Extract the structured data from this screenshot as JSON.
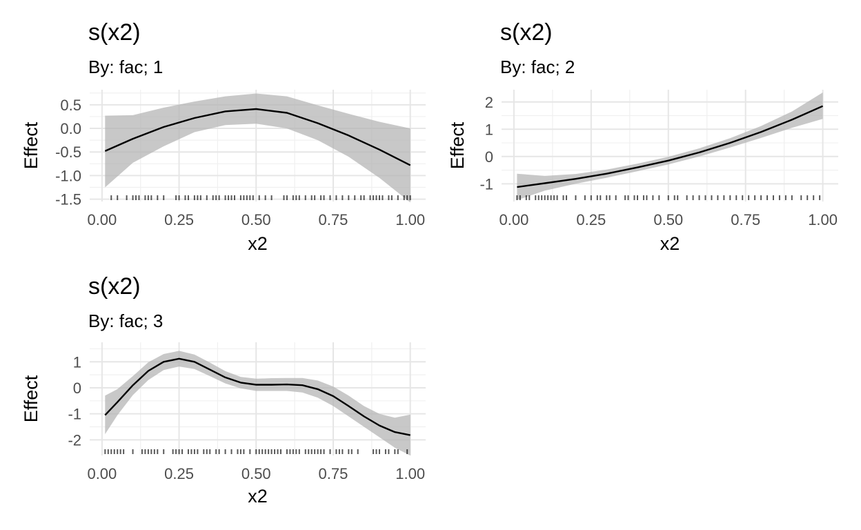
{
  "chart_data": [
    {
      "type": "line",
      "title": "s(x2)",
      "subtitle": "By: fac; 1",
      "xlabel": "x2",
      "ylabel": "Effect",
      "xlim": [
        -0.04,
        1.05
      ],
      "ylim": [
        -1.55,
        0.82
      ],
      "x_ticks": [
        0.0,
        0.25,
        0.5,
        0.75,
        1.0
      ],
      "x_tick_labels": [
        "0.00",
        "0.25",
        "0.50",
        "0.75",
        "1.00"
      ],
      "y_ticks": [
        -1.5,
        -1.0,
        -0.5,
        0.0,
        0.5
      ],
      "y_tick_labels": [
        "-1.5",
        "-1.0",
        "-0.5",
        "0.0",
        "0.5"
      ],
      "grid": true,
      "series": [
        {
          "x": [
            0.01,
            0.1,
            0.2,
            0.3,
            0.4,
            0.5,
            0.6,
            0.7,
            0.8,
            0.9,
            1.0
          ],
          "y": [
            -0.48,
            -0.22,
            0.03,
            0.22,
            0.36,
            0.41,
            0.33,
            0.11,
            -0.15,
            -0.45,
            -0.78
          ],
          "lower": [
            -1.25,
            -0.73,
            -0.38,
            -0.08,
            0.07,
            0.1,
            0.0,
            -0.25,
            -0.6,
            -1.05,
            -1.57
          ],
          "upper": [
            0.27,
            0.28,
            0.44,
            0.57,
            0.68,
            0.74,
            0.68,
            0.49,
            0.31,
            0.14,
            0.0
          ]
        }
      ],
      "rug": [
        0.03,
        0.05,
        0.08,
        0.1,
        0.11,
        0.12,
        0.14,
        0.15,
        0.16,
        0.18,
        0.2,
        0.24,
        0.25,
        0.27,
        0.28,
        0.3,
        0.31,
        0.32,
        0.34,
        0.36,
        0.37,
        0.38,
        0.4,
        0.41,
        0.42,
        0.43,
        0.45,
        0.46,
        0.47,
        0.48,
        0.49,
        0.51,
        0.53,
        0.55,
        0.59,
        0.6,
        0.62,
        0.63,
        0.64,
        0.66,
        0.68,
        0.69,
        0.71,
        0.72,
        0.74,
        0.76,
        0.78,
        0.8,
        0.82,
        0.84,
        0.85,
        0.87,
        0.88,
        0.89,
        0.9,
        0.91,
        0.93,
        0.94,
        0.96,
        0.98,
        0.99,
        1.0
      ]
    },
    {
      "type": "line",
      "title": "s(x2)",
      "subtitle": "By: fac; 2",
      "xlabel": "x2",
      "ylabel": "Effect",
      "xlim": [
        -0.04,
        1.05
      ],
      "ylim": [
        -1.65,
        2.45
      ],
      "x_ticks": [
        0.0,
        0.25,
        0.5,
        0.75,
        1.0
      ],
      "x_tick_labels": [
        "0.00",
        "0.25",
        "0.50",
        "0.75",
        "1.00"
      ],
      "y_ticks": [
        -1,
        0,
        1,
        2
      ],
      "y_tick_labels": [
        "-1",
        "0",
        "1",
        "2"
      ],
      "grid": true,
      "series": [
        {
          "x": [
            0.01,
            0.1,
            0.2,
            0.3,
            0.4,
            0.5,
            0.6,
            0.7,
            0.8,
            0.9,
            1.0
          ],
          "y": [
            -1.12,
            -0.98,
            -0.82,
            -0.63,
            -0.4,
            -0.15,
            0.15,
            0.5,
            0.9,
            1.35,
            1.85
          ],
          "lower": [
            -1.6,
            -1.25,
            -1.0,
            -0.78,
            -0.54,
            -0.29,
            0.0,
            0.33,
            0.68,
            1.05,
            1.38
          ],
          "upper": [
            -0.63,
            -0.71,
            -0.64,
            -0.48,
            -0.26,
            -0.01,
            0.3,
            0.67,
            1.12,
            1.65,
            2.35
          ]
        }
      ],
      "rug": [
        0.01,
        0.02,
        0.04,
        0.05,
        0.07,
        0.08,
        0.09,
        0.1,
        0.11,
        0.12,
        0.13,
        0.14,
        0.16,
        0.17,
        0.2,
        0.23,
        0.25,
        0.27,
        0.28,
        0.3,
        0.31,
        0.33,
        0.36,
        0.37,
        0.39,
        0.4,
        0.42,
        0.43,
        0.45,
        0.47,
        0.5,
        0.52,
        0.53,
        0.56,
        0.58,
        0.6,
        0.62,
        0.64,
        0.66,
        0.68,
        0.7,
        0.72,
        0.74,
        0.76,
        0.78,
        0.8,
        0.82,
        0.84,
        0.86,
        0.88,
        0.9,
        0.93,
        0.95,
        0.97,
        0.99
      ]
    },
    {
      "type": "line",
      "title": "s(x2)",
      "subtitle": "By: fac; 3",
      "xlabel": "x2",
      "ylabel": "Effect",
      "xlim": [
        -0.04,
        1.05
      ],
      "ylim": [
        -2.6,
        1.75
      ],
      "x_ticks": [
        0.0,
        0.25,
        0.5,
        0.75,
        1.0
      ],
      "x_tick_labels": [
        "0.00",
        "0.25",
        "0.50",
        "0.75",
        "1.00"
      ],
      "y_ticks": [
        -2,
        -1,
        0,
        1
      ],
      "y_tick_labels": [
        "-2",
        "-1",
        "0",
        "1"
      ],
      "grid": true,
      "series": [
        {
          "x": [
            0.01,
            0.05,
            0.1,
            0.15,
            0.2,
            0.25,
            0.3,
            0.35,
            0.4,
            0.45,
            0.5,
            0.55,
            0.6,
            0.65,
            0.7,
            0.75,
            0.8,
            0.85,
            0.9,
            0.95,
            1.0
          ],
          "y": [
            -1.05,
            -0.55,
            0.1,
            0.65,
            1.0,
            1.12,
            1.0,
            0.7,
            0.4,
            0.2,
            0.12,
            0.12,
            0.13,
            0.1,
            -0.05,
            -0.32,
            -0.7,
            -1.1,
            -1.45,
            -1.7,
            -1.82
          ],
          "lower": [
            -1.78,
            -1.05,
            -0.28,
            0.3,
            0.68,
            0.82,
            0.72,
            0.45,
            0.17,
            -0.02,
            -0.12,
            -0.12,
            -0.12,
            -0.18,
            -0.38,
            -0.7,
            -1.1,
            -1.5,
            -1.9,
            -2.3,
            -2.6
          ],
          "upper": [
            -0.3,
            -0.05,
            0.45,
            0.98,
            1.3,
            1.42,
            1.28,
            0.97,
            0.64,
            0.42,
            0.35,
            0.37,
            0.38,
            0.38,
            0.28,
            0.05,
            -0.3,
            -0.7,
            -1.0,
            -1.15,
            -1.03
          ]
        }
      ],
      "rug": [
        0.01,
        0.02,
        0.03,
        0.04,
        0.05,
        0.06,
        0.07,
        0.1,
        0.13,
        0.14,
        0.15,
        0.16,
        0.17,
        0.18,
        0.2,
        0.23,
        0.24,
        0.25,
        0.26,
        0.28,
        0.29,
        0.3,
        0.31,
        0.33,
        0.34,
        0.35,
        0.37,
        0.38,
        0.4,
        0.42,
        0.44,
        0.45,
        0.46,
        0.48,
        0.5,
        0.51,
        0.52,
        0.53,
        0.54,
        0.55,
        0.56,
        0.57,
        0.58,
        0.6,
        0.61,
        0.62,
        0.63,
        0.64,
        0.66,
        0.67,
        0.68,
        0.69,
        0.7,
        0.71,
        0.72,
        0.74,
        0.76,
        0.77,
        0.78,
        0.8,
        0.81,
        0.83,
        0.88,
        0.89,
        0.9,
        0.92,
        0.93,
        0.95,
        0.96,
        0.99
      ]
    }
  ]
}
